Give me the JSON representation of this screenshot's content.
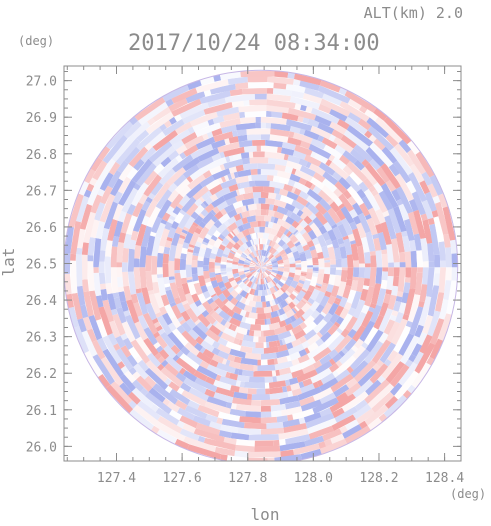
{
  "header": {
    "alt_label": "ALT(km) 2.0",
    "timestamp": "2017/10/24 08:34:00"
  },
  "chart_data": {
    "type": "heatmap",
    "title": "2017/10/24 08:34:00",
    "subtitle": "ALT(km) 2.0",
    "xlabel": "lon",
    "ylabel": "lat",
    "x_unit": "(deg)",
    "y_unit": "(deg)",
    "xlim": [
      127.24,
      128.45
    ],
    "ylim": [
      25.96,
      27.04
    ],
    "x_ticks": [
      "127.4",
      "127.6",
      "127.8",
      "128.0",
      "128.2",
      "128.4"
    ],
    "y_ticks": [
      "27.0",
      "26.9",
      "26.8",
      "26.7",
      "26.6",
      "26.5",
      "26.4",
      "26.3",
      "26.2",
      "26.1",
      "26.0"
    ],
    "center": {
      "lon": 127.84,
      "lat": 26.49
    },
    "radius_deg": {
      "lon": 0.6,
      "lat": 0.54
    },
    "colors": {
      "positive": "#f4a6a6",
      "negative": "#a9b2ee",
      "neutral": "#ffffff",
      "axis": "#8c8c8c"
    }
  }
}
